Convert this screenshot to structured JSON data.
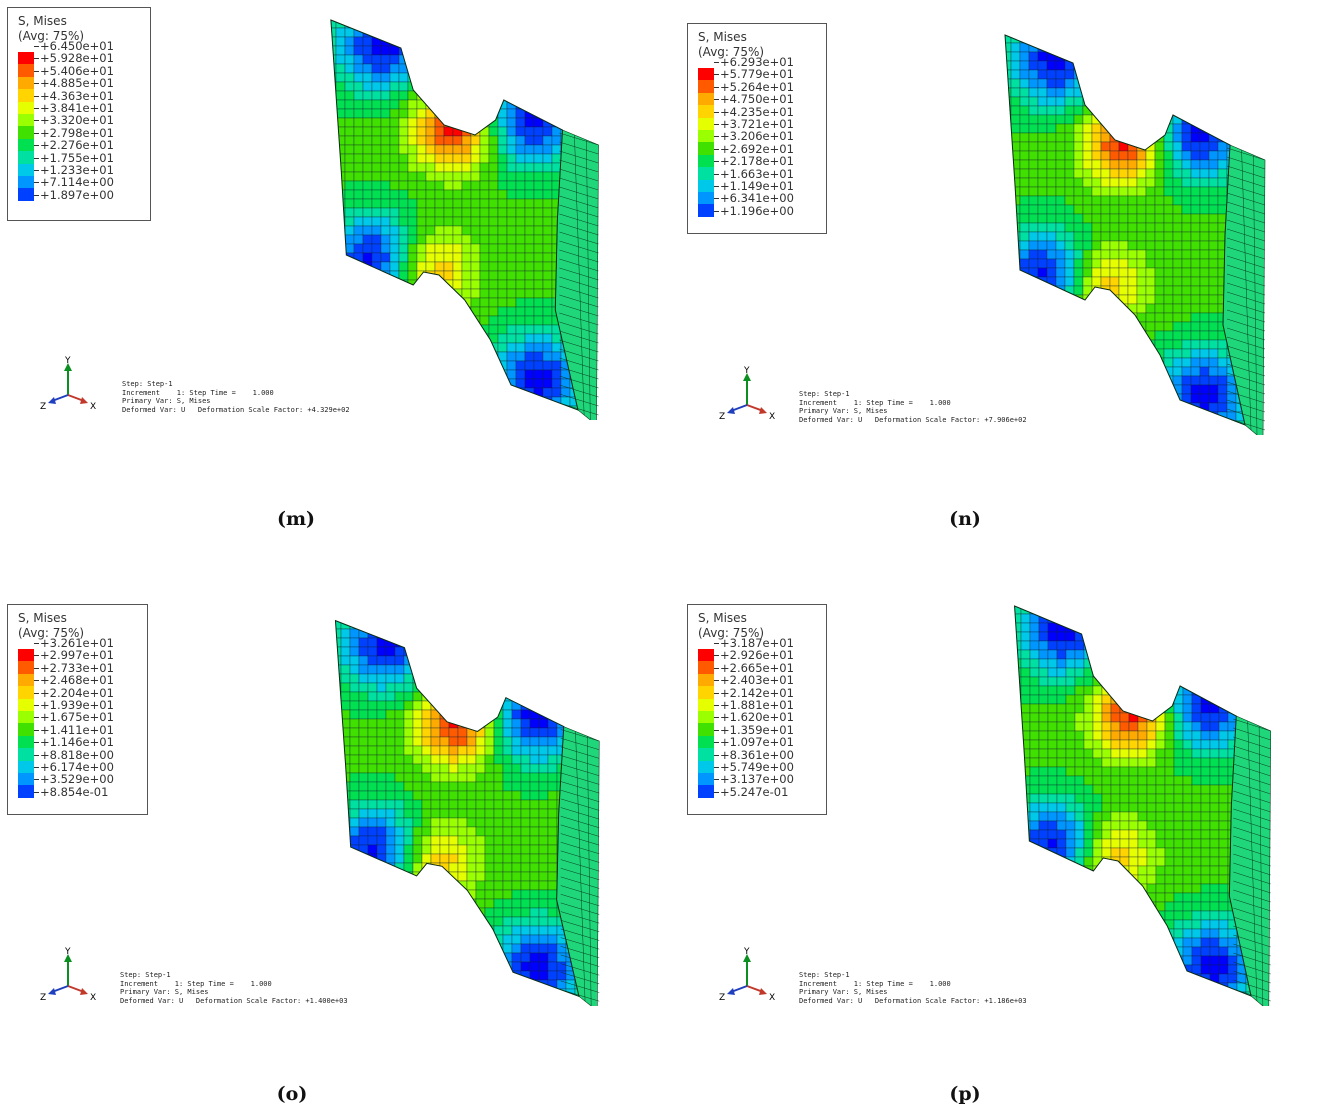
{
  "panels": [
    {
      "id": "m",
      "label": "(m)",
      "legend": {
        "title_line1": "S, Mises",
        "title_line2": "(Avg: 75%)",
        "values": [
          "+6.450e+01",
          "+5.928e+01",
          "+5.406e+01",
          "+4.885e+01",
          "+4.363e+01",
          "+3.841e+01",
          "+3.320e+01",
          "+2.798e+01",
          "+2.276e+01",
          "+1.755e+01",
          "+1.233e+01",
          "+7.114e+00",
          "+1.897e+00"
        ]
      },
      "info": {
        "step": "Step: Step-1",
        "increment": "Increment    1: Step Time =    1.000",
        "primary": "Primary Var: S, Mises",
        "deformed": "Deformed Var: U   Deformation Scale Factor: +4.329e+02"
      }
    },
    {
      "id": "n",
      "label": "(n)",
      "legend": {
        "title_line1": "S, Mises",
        "title_line2": "(Avg: 75%)",
        "values": [
          "+6.293e+01",
          "+5.779e+01",
          "+5.264e+01",
          "+4.750e+01",
          "+4.235e+01",
          "+3.721e+01",
          "+3.206e+01",
          "+2.692e+01",
          "+2.178e+01",
          "+1.663e+01",
          "+1.149e+01",
          "+6.341e+00",
          "+1.196e+00"
        ]
      },
      "info": {
        "step": "Step: Step-1",
        "increment": "Increment    1: Step Time =    1.000",
        "primary": "Primary Var: S, Mises",
        "deformed": "Deformed Var: U   Deformation Scale Factor: +7.906e+02"
      }
    },
    {
      "id": "o",
      "label": "(o)",
      "legend": {
        "title_line1": "S, Mises",
        "title_line2": "(Avg: 75%)",
        "values": [
          "+3.261e+01",
          "+2.997e+01",
          "+2.733e+01",
          "+2.468e+01",
          "+2.204e+01",
          "+1.939e+01",
          "+1.675e+01",
          "+1.411e+01",
          "+1.146e+01",
          "+8.818e+00",
          "+6.174e+00",
          "+3.529e+00",
          "+8.854e-01"
        ]
      },
      "info": {
        "step": "Step: Step-1",
        "increment": "Increment    1: Step Time =    1.000",
        "primary": "Primary Var: S, Mises",
        "deformed": "Deformed Var: U   Deformation Scale Factor: +1.400e+03"
      }
    },
    {
      "id": "p",
      "label": "(p)",
      "legend": {
        "title_line1": "S, Mises",
        "title_line2": "(Avg: 75%)",
        "values": [
          "+3.187e+01",
          "+2.926e+01",
          "+2.665e+01",
          "+2.403e+01",
          "+2.142e+01",
          "+1.881e+01",
          "+1.620e+01",
          "+1.359e+01",
          "+1.097e+01",
          "+8.361e+00",
          "+5.749e+00",
          "+3.137e+00",
          "+5.247e-01"
        ]
      },
      "info": {
        "step": "Step: Step-1",
        "increment": "Increment    1: Step Time =    1.000",
        "primary": "Primary Var: S, Mises",
        "deformed": "Deformed Var: U   Deformation Scale Factor: +1.186e+03"
      }
    }
  ],
  "triad": {
    "y": "Y",
    "z": "Z",
    "x": "X"
  },
  "contour_colors": [
    "#ff0000",
    "#ff5a00",
    "#ffaa00",
    "#ffd400",
    "#e5ff00",
    "#9aff00",
    "#40e000",
    "#00e050",
    "#00e0a0",
    "#00c8e8",
    "#0096ff",
    "#0040ff",
    "#0000ff"
  ]
}
